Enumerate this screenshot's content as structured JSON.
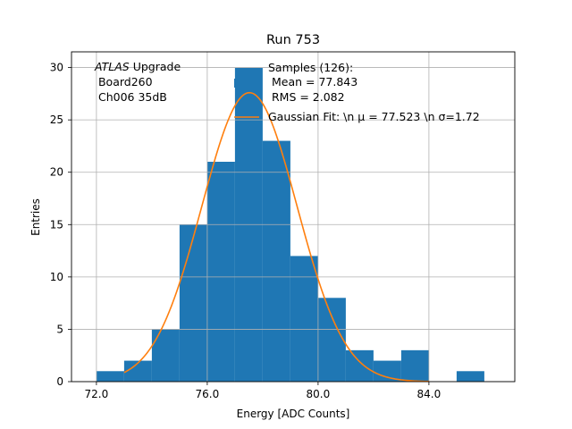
{
  "chart_data": {
    "type": "bar",
    "title": "Run 753",
    "xlabel": "Energy [ADC Counts]",
    "ylabel": "Entries",
    "xlim": [
      71.1,
      87.1
    ],
    "ylim": [
      0,
      31.5
    ],
    "grid": true,
    "xticks": [
      {
        "value": 72,
        "label": "72.0"
      },
      {
        "value": 76,
        "label": "76.0"
      },
      {
        "value": 80,
        "label": "80.0"
      },
      {
        "value": 84,
        "label": "84.0"
      }
    ],
    "yticks": [
      {
        "value": 0,
        "label": "0"
      },
      {
        "value": 5,
        "label": "5"
      },
      {
        "value": 10,
        "label": "10"
      },
      {
        "value": 15,
        "label": "15"
      },
      {
        "value": 20,
        "label": "20"
      },
      {
        "value": 25,
        "label": "25"
      },
      {
        "value": 30,
        "label": "30"
      }
    ],
    "histogram": {
      "bin_edges": [
        72,
        73,
        74,
        75,
        76,
        77,
        78,
        79,
        80,
        81,
        82,
        83,
        84,
        85,
        86
      ],
      "counts": [
        1,
        2,
        5,
        15,
        21,
        30,
        23,
        12,
        8,
        3,
        2,
        3,
        0,
        1
      ],
      "color": "#1f77b4"
    },
    "fit": {
      "type": "gaussian",
      "mu": 77.523,
      "sigma": 1.72,
      "peak": 27.6,
      "x_range": [
        73,
        84
      ],
      "color": "#ff7f0e"
    },
    "annotation": {
      "italic": "ATLAS",
      "line1_rest": " Upgrade",
      "line2": " Board260",
      "line3": " Ch006 35dB"
    },
    "legend": {
      "placement": "top-right",
      "entries": [
        {
          "kind": "patch",
          "color": "#1f77b4",
          "lines": [
            "Samples (126):",
            " Mean = 77.843",
            " RMS = 2.082"
          ]
        },
        {
          "kind": "line",
          "color": "#ff7f0e",
          "label": "Gaussian Fit: \\n μ = 77.523 \\n σ=1.72"
        }
      ]
    }
  }
}
